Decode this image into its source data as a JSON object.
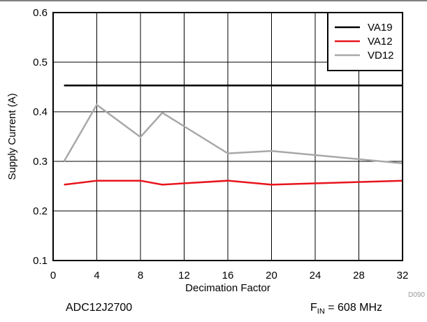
{
  "chart_data": {
    "type": "line",
    "title": "",
    "xlabel": "Decimation Factor",
    "ylabel": "Supply Current (A)",
    "xlim": [
      0,
      32
    ],
    "ylim": [
      0.1,
      0.6
    ],
    "xticks": [
      0,
      4,
      8,
      12,
      16,
      20,
      24,
      28,
      32
    ],
    "yticks": [
      0.1,
      0.2,
      0.3,
      0.4,
      0.5,
      0.6
    ],
    "grid": true,
    "legend_position": "top-right",
    "series": [
      {
        "name": "VA19",
        "color": "#000000",
        "x": [
          1,
          32
        ],
        "y": [
          0.453,
          0.453
        ]
      },
      {
        "name": "VA12",
        "color": "#e8141c",
        "x": [
          1,
          4,
          8,
          10,
          16,
          20,
          32
        ],
        "y": [
          0.253,
          0.261,
          0.261,
          0.253,
          0.261,
          0.253,
          0.261
        ]
      },
      {
        "name": "VD12",
        "color": "#a8a8a8",
        "x": [
          1,
          4,
          8,
          10,
          16,
          20,
          32
        ],
        "y": [
          0.3,
          0.414,
          0.349,
          0.398,
          0.316,
          0.321,
          0.296
        ]
      }
    ]
  },
  "footer": {
    "device": "ADC12J2700",
    "fin_symbol": "F",
    "fin_subscript": "IN",
    "fin_value": " = 608 MHz",
    "figure_code": "D090"
  }
}
